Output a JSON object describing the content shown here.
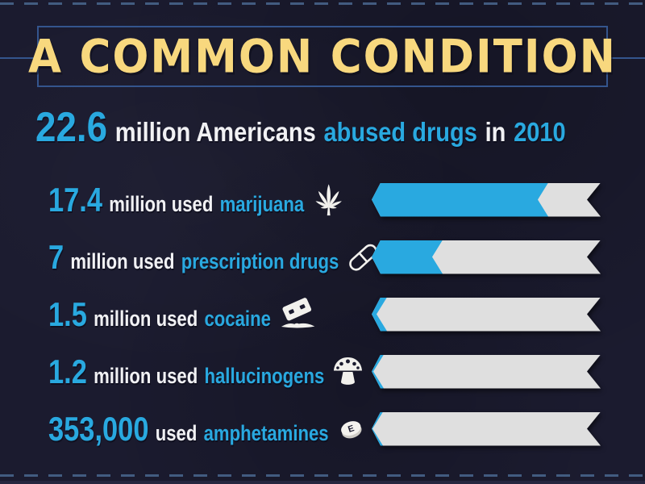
{
  "infographic": {
    "title": "A COMMON CONDITION",
    "summary": {
      "number": "22.6",
      "text_after_number": "million Americans",
      "highlight": "abused drugs",
      "connector": "in",
      "year": "2010"
    }
  },
  "icons": {
    "pill_marking": "E",
    "names": [
      "marijuana-leaf-icon",
      "capsule-icon",
      "razor-blade-icon",
      "mushroom-icon",
      "pill-icon"
    ]
  },
  "colors": {
    "background": "#1B1B2F",
    "accent_blue": "#29A9E0",
    "title_yellow": "#F8D87E",
    "bar_track_gray": "#DFDFDF",
    "border_line_blue": "#34558D",
    "text_white": "#F1F1F4"
  },
  "chart_data": {
    "type": "bar",
    "title": "A COMMON CONDITION",
    "subtitle": "22.6 million Americans abused drugs in 2010",
    "total_million": 22.6,
    "bar_max_million": 22.6,
    "bar_color": "#29A9E0",
    "bar_track_color": "#DFDFDF",
    "categories": [
      "marijuana",
      "prescription drugs",
      "cocaine",
      "hallucinogens",
      "amphetamines"
    ],
    "values_million": [
      17.4,
      7,
      1.5,
      1.2,
      0.353
    ],
    "rows": [
      {
        "value": "17.4",
        "unit": "million used",
        "category": "marijuana",
        "icon": "marijuana-leaf-icon",
        "fraction": 0.77
      },
      {
        "value": "7",
        "unit": "million used",
        "category": "prescription drugs",
        "icon": "capsule-icon",
        "fraction": 0.31
      },
      {
        "value": "1.5",
        "unit": "million used",
        "category": "cocaine",
        "icon": "razor-blade-icon",
        "fraction": 0.066
      },
      {
        "value": "1.2",
        "unit": "million used",
        "category": "hallucinogens",
        "icon": "mushroom-icon",
        "fraction": 0.053
      },
      {
        "value": "353,000",
        "unit": "used",
        "category": "amphetamines",
        "icon": "pill-icon",
        "fraction": 0.016
      }
    ]
  }
}
